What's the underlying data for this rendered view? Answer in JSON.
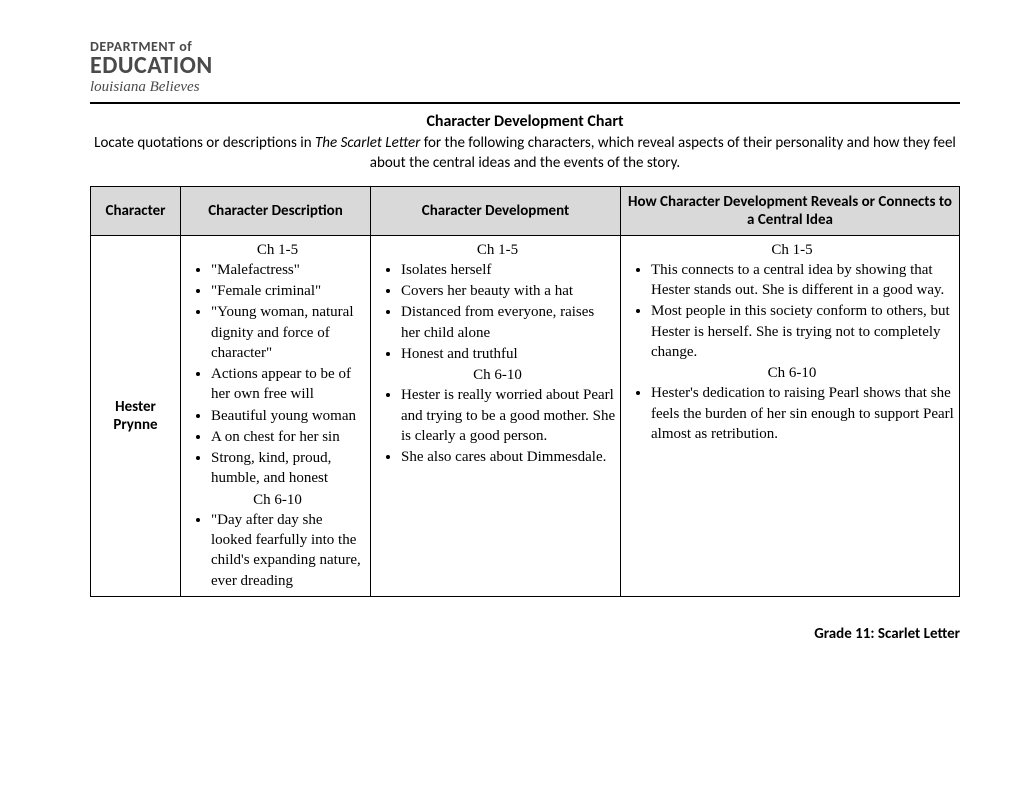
{
  "logo": {
    "line1": "DEPARTMENT of",
    "line2": "EDUCATION",
    "line3": "louisiana Believes"
  },
  "title": "Character Development Chart",
  "instructions_pre": "Locate quotations or descriptions in ",
  "instructions_italic": "The Scarlet Letter",
  "instructions_post": " for the following characters, which reveal aspects of their personality and how they feel about the central ideas and the events of the story.",
  "headers": {
    "h1": "Character",
    "h2": "Character Description",
    "h3": "Character Development",
    "h4": "How Character Development Reveals or Connects to a Central Idea"
  },
  "row": {
    "character": "Hester Prynne",
    "col2": {
      "heading1": "Ch 1-5",
      "items1": [
        "\"Malefactress\"",
        "\"Female criminal\"",
        "\"Young woman, natural dignity and force of character\"",
        "Actions appear to be of her own free will",
        "Beautiful young woman",
        "A on chest for her sin",
        "Strong, kind, proud, humble, and honest"
      ],
      "heading2": "Ch 6-10",
      "items2": [
        "\"Day after day she looked fearfully into the child's expanding nature, ever dreading"
      ]
    },
    "col3": {
      "heading1": "Ch 1-5",
      "items1": [
        "Isolates herself",
        "Covers her beauty with a hat",
        "Distanced from everyone, raises her child alone",
        "Honest and truthful"
      ],
      "heading2": "Ch 6-10",
      "items2": [
        "Hester is really worried about Pearl and trying to be a good mother. She is clearly a good person.",
        "She also cares about Dimmesdale."
      ]
    },
    "col4": {
      "heading1": "Ch 1-5",
      "items1": [
        "This connects to a central idea by showing that Hester stands out. She is different in a good way.",
        "Most people in this society conform to others, but Hester is herself. She is trying not to completely change."
      ],
      "heading2": "Ch 6-10",
      "items2": [
        "Hester's dedication to raising Pearl shows that she feels the burden of her sin enough to support Pearl almost as retribution."
      ]
    }
  },
  "footer": "Grade 11: Scarlet Letter",
  "style": {
    "page_bg": "#ffffff",
    "text_color": "#000000",
    "header_bg": "#d9d9d9",
    "border_color": "#000000",
    "logo_color": "#4a4a4a",
    "body_font": "Calibri",
    "handwriting_font": "Comic Sans MS",
    "title_fontsize": 16,
    "body_fontsize": 15
  }
}
